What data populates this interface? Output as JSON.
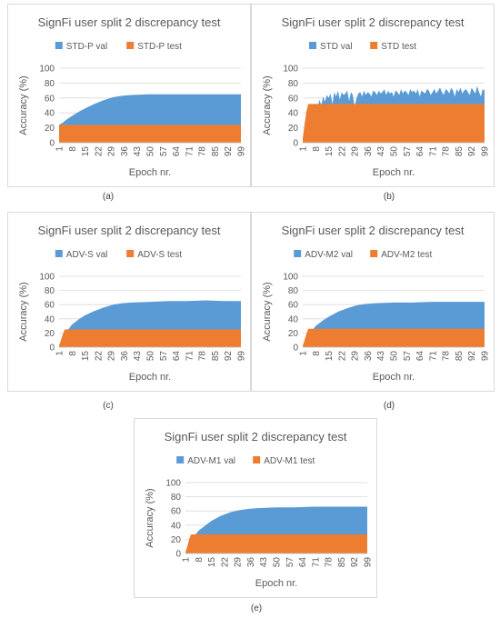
{
  "chart_data": [
    {
      "type": "area",
      "title": "SignFi user split 2 discrepancy test",
      "xlabel": "Epoch nr.",
      "ylabel": "Accuracy (%)",
      "ylim": [
        0,
        100
      ],
      "yticks": [
        0,
        20,
        40,
        60,
        80,
        100
      ],
      "xticks": [
        1,
        8,
        15,
        22,
        29,
        36,
        43,
        50,
        57,
        64,
        71,
        78,
        85,
        92,
        99
      ],
      "xlim": [
        1,
        99
      ],
      "legend": "top",
      "caption": "(a)",
      "series": [
        {
          "name": "STD-P val",
          "color": "#5b9bd5",
          "x": [
            1,
            3,
            5,
            8,
            12,
            15,
            20,
            25,
            30,
            35,
            40,
            50,
            60,
            70,
            80,
            90,
            99
          ],
          "values": [
            24,
            27,
            31,
            36,
            42,
            46,
            52,
            57,
            61,
            63,
            64,
            65,
            65,
            65,
            65,
            65,
            65
          ]
        },
        {
          "name": "STD-P test",
          "color": "#ed7d31",
          "x": [
            1,
            99
          ],
          "values": [
            24,
            24
          ]
        }
      ]
    },
    {
      "type": "area",
      "title": "SignFi user split 2 discrepancy test",
      "xlabel": "Epoch nr.",
      "ylabel": "Accuracy (%)",
      "ylim": [
        0,
        100
      ],
      "yticks": [
        0,
        20,
        40,
        60,
        80,
        100
      ],
      "xticks": [
        1,
        8,
        15,
        22,
        29,
        36,
        43,
        50,
        57,
        64,
        71,
        78,
        85,
        92,
        99
      ],
      "xlim": [
        1,
        99
      ],
      "legend": "top",
      "caption": "(b)",
      "series": [
        {
          "name": "STD val",
          "color": "#5b9bd5",
          "x": [
            1,
            3,
            5,
            6,
            7,
            8,
            9,
            10,
            11,
            12,
            13,
            14,
            15,
            16,
            17,
            18,
            19,
            20,
            21,
            22,
            23,
            24,
            25,
            26,
            27,
            28,
            29,
            30,
            31,
            32,
            33,
            34,
            35,
            36,
            37,
            38,
            39,
            40,
            41,
            42,
            43,
            44,
            45,
            46,
            47,
            48,
            49,
            50,
            51,
            52,
            53,
            54,
            55,
            56,
            57,
            58,
            59,
            60,
            61,
            62,
            63,
            64,
            65,
            66,
            67,
            68,
            69,
            70,
            71,
            72,
            73,
            74,
            75,
            76,
            77,
            78,
            79,
            80,
            81,
            82,
            83,
            84,
            85,
            86,
            87,
            88,
            89,
            90,
            91,
            92,
            93,
            94,
            95,
            96,
            97,
            98,
            99
          ],
          "values": [
            5,
            15,
            30,
            40,
            28,
            52,
            45,
            58,
            50,
            62,
            55,
            64,
            60,
            66,
            52,
            68,
            62,
            70,
            58,
            68,
            64,
            66,
            70,
            56,
            68,
            64,
            48,
            60,
            66,
            68,
            62,
            70,
            64,
            68,
            66,
            62,
            70,
            68,
            64,
            70,
            66,
            68,
            72,
            64,
            70,
            66,
            68,
            62,
            70,
            68,
            64,
            72,
            66,
            70,
            68,
            64,
            72,
            68,
            70,
            66,
            72,
            62,
            70,
            68,
            66,
            72,
            70,
            64,
            68,
            72,
            66,
            70,
            74,
            68,
            64,
            72,
            70,
            66,
            74,
            70,
            62,
            72,
            68,
            74,
            66,
            70,
            72,
            68,
            64,
            74,
            70,
            66,
            76,
            68,
            62,
            72,
            70
          ]
        },
        {
          "name": "STD test",
          "color": "#ed7d31",
          "x": [
            1,
            2,
            3,
            4,
            99
          ],
          "values": [
            5,
            25,
            42,
            52,
            52
          ]
        }
      ]
    },
    {
      "type": "area",
      "title": "SignFi user split 2 discrepancy test",
      "xlabel": "Epoch nr.",
      "ylabel": "Accuracy (%)",
      "ylim": [
        0,
        100
      ],
      "yticks": [
        0,
        20,
        40,
        60,
        80,
        100
      ],
      "xticks": [
        1,
        8,
        15,
        22,
        29,
        36,
        43,
        50,
        57,
        64,
        71,
        78,
        85,
        92,
        99
      ],
      "xlim": [
        1,
        99
      ],
      "legend": "top",
      "caption": "(c)",
      "series": [
        {
          "name": "ADV-S val",
          "color": "#5b9bd5",
          "x": [
            1,
            3,
            5,
            8,
            12,
            15,
            20,
            25,
            30,
            35,
            40,
            50,
            60,
            70,
            80,
            90,
            99
          ],
          "values": [
            2,
            12,
            22,
            32,
            40,
            45,
            51,
            56,
            60,
            62,
            63,
            64,
            65,
            65,
            66,
            65,
            65
          ]
        },
        {
          "name": "ADV-S test",
          "color": "#ed7d31",
          "x": [
            1,
            2,
            3,
            4,
            99
          ],
          "values": [
            2,
            10,
            18,
            25,
            25
          ]
        }
      ]
    },
    {
      "type": "area",
      "title": "SignFi user split 2 discrepancy test",
      "xlabel": "Epoch nr.",
      "ylabel": "Accuracy (%)",
      "ylim": [
        0,
        100
      ],
      "yticks": [
        0,
        20,
        40,
        60,
        80,
        100
      ],
      "xticks": [
        1,
        8,
        15,
        22,
        29,
        36,
        43,
        50,
        57,
        64,
        71,
        78,
        85,
        92,
        99
      ],
      "xlim": [
        1,
        99
      ],
      "legend": "top",
      "caption": "(d)",
      "series": [
        {
          "name": "ADV-M2 val",
          "color": "#5b9bd5",
          "x": [
            1,
            3,
            5,
            8,
            12,
            15,
            20,
            25,
            30,
            35,
            40,
            50,
            60,
            70,
            80,
            90,
            99
          ],
          "values": [
            2,
            10,
            20,
            30,
            38,
            43,
            50,
            55,
            59,
            61,
            62,
            63,
            63,
            64,
            64,
            64,
            64
          ]
        },
        {
          "name": "ADV-M2 test",
          "color": "#ed7d31",
          "x": [
            1,
            2,
            3,
            4,
            99
          ],
          "values": [
            2,
            10,
            19,
            26,
            26
          ]
        }
      ]
    },
    {
      "type": "area",
      "title": "SignFi user split 2 discrepancy test",
      "xlabel": "Epoch nr.",
      "ylabel": "Accuracy (%)",
      "ylim": [
        0,
        100
      ],
      "yticks": [
        0,
        20,
        40,
        60,
        80,
        100
      ],
      "xticks": [
        1,
        8,
        15,
        22,
        29,
        36,
        43,
        50,
        57,
        64,
        71,
        78,
        85,
        92,
        99
      ],
      "xlim": [
        1,
        99
      ],
      "legend": "top",
      "caption": "(e)",
      "series": [
        {
          "name": "ADV-M1 val",
          "color": "#5b9bd5",
          "x": [
            1,
            3,
            5,
            8,
            12,
            15,
            20,
            25,
            30,
            35,
            40,
            50,
            60,
            70,
            80,
            90,
            99
          ],
          "values": [
            2,
            12,
            22,
            32,
            40,
            46,
            53,
            58,
            61,
            63,
            64,
            65,
            65,
            66,
            66,
            66,
            66
          ]
        },
        {
          "name": "ADV-M1 test",
          "color": "#ed7d31",
          "x": [
            1,
            2,
            3,
            4,
            99
          ],
          "values": [
            2,
            10,
            20,
            27,
            27
          ]
        }
      ]
    }
  ]
}
